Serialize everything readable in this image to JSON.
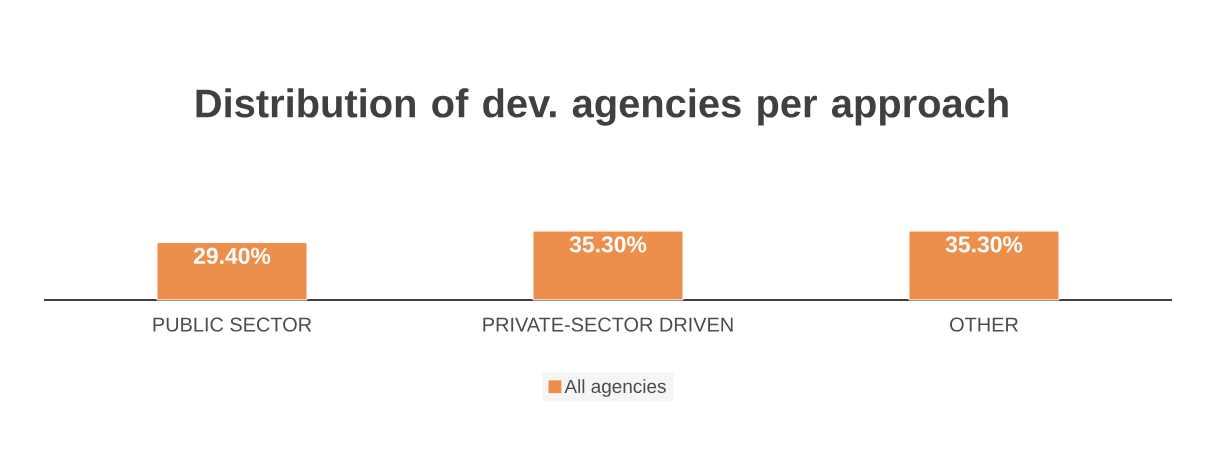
{
  "chart_data": {
    "type": "bar",
    "title": "Distribution of dev. agencies per approach",
    "categories": [
      "PUBLIC SECTOR",
      "PRIVATE-SECTOR DRIVEN",
      "OTHER"
    ],
    "series": [
      {
        "name": "All agencies",
        "color": "#ed8f4c",
        "values": [
          29.4,
          35.3,
          35.3
        ],
        "value_labels": [
          "29.40%",
          "35.30%",
          "35.30%"
        ]
      }
    ],
    "legend": "bottom"
  }
}
